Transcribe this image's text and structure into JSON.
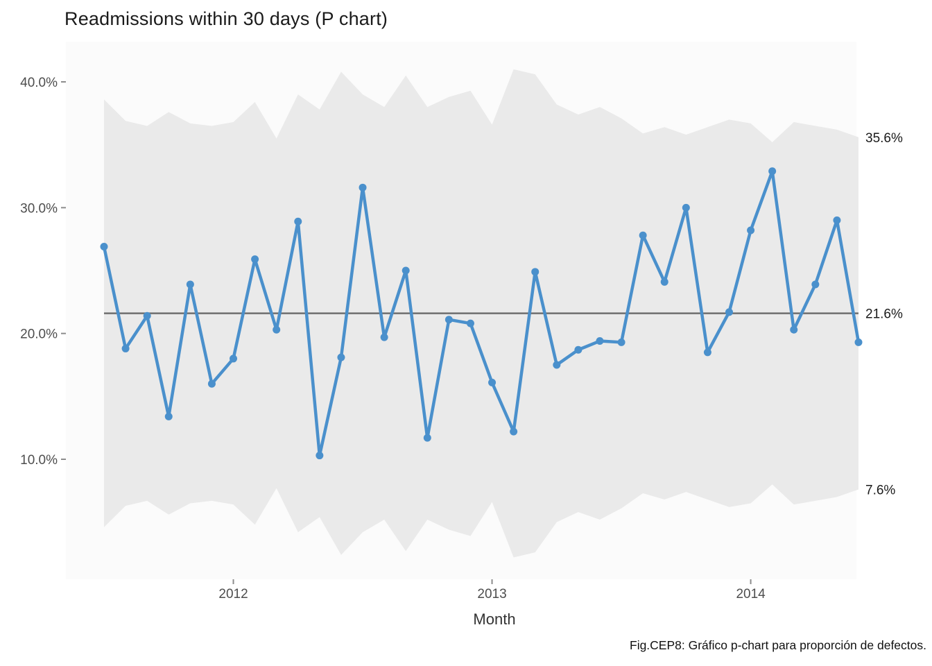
{
  "chart_data": {
    "type": "line",
    "subtype": "p-control-chart",
    "title": "Readmissions within 30 days (P chart)",
    "xlabel": "Month",
    "ylabel": "",
    "caption": "Fig.CEP8: Gráfico p-chart para proporción de defectos.",
    "grid": false,
    "legend": "none",
    "n_points": 36,
    "x_start_label": "2011-07",
    "x_tick_labels": [
      "2012",
      "2013",
      "2014"
    ],
    "x_tick_month_index": [
      7,
      19,
      31
    ],
    "y_tick_labels": [
      "40.0%",
      "30.0%",
      "20.0%",
      "10.0%"
    ],
    "y_tick_values": [
      40,
      30,
      20,
      10
    ],
    "ylim": [
      1.5,
      43.5
    ],
    "center_line_percent": 21.6,
    "series": [
      {
        "name": "proportion-readmitted",
        "values": [
          26.9,
          18.8,
          21.4,
          13.4,
          23.9,
          16.0,
          18.0,
          25.9,
          20.3,
          28.9,
          10.3,
          18.1,
          31.6,
          19.7,
          25.0,
          11.7,
          21.1,
          20.8,
          16.1,
          12.2,
          24.9,
          17.5,
          18.7,
          19.4,
          19.3,
          27.8,
          24.1,
          30.0,
          18.5,
          21.7,
          28.2,
          32.9,
          20.3,
          23.9,
          29.0,
          19.3
        ]
      }
    ],
    "control_limits": {
      "ucl_percent": [
        38.6,
        36.9,
        36.5,
        37.6,
        36.7,
        36.5,
        36.8,
        38.4,
        35.5,
        39.0,
        37.8,
        40.8,
        39.0,
        38.0,
        40.5,
        38.0,
        38.8,
        39.3,
        36.6,
        41.0,
        40.6,
        38.2,
        37.4,
        38.0,
        37.1,
        35.9,
        36.4,
        35.8,
        36.4,
        37.0,
        36.7,
        35.2,
        36.8,
        36.5,
        36.2,
        35.6
      ],
      "lcl_percent": [
        4.6,
        6.3,
        6.7,
        5.6,
        6.5,
        6.7,
        6.4,
        4.8,
        7.7,
        4.2,
        5.4,
        2.4,
        4.2,
        5.2,
        2.7,
        5.2,
        4.4,
        3.9,
        6.6,
        2.2,
        2.6,
        5.0,
        5.8,
        5.2,
        6.1,
        7.3,
        6.8,
        7.4,
        6.8,
        6.2,
        6.5,
        8.0,
        6.4,
        6.7,
        7.0,
        7.6
      ],
      "ucl_end_label": "35.6%",
      "center_end_label": "21.6%",
      "lcl_end_label": "7.6%"
    },
    "colors": {
      "series": "#4a90cc",
      "band": "#eaeaea",
      "center_line": "#6e6e6e",
      "axis_text": "#4d4d4d",
      "tick_mark": "#8c8c8c",
      "annotation_text": "#1a1a1a",
      "panel_bg": "#fbfbfb",
      "figure_bg": "#ffffff"
    }
  }
}
